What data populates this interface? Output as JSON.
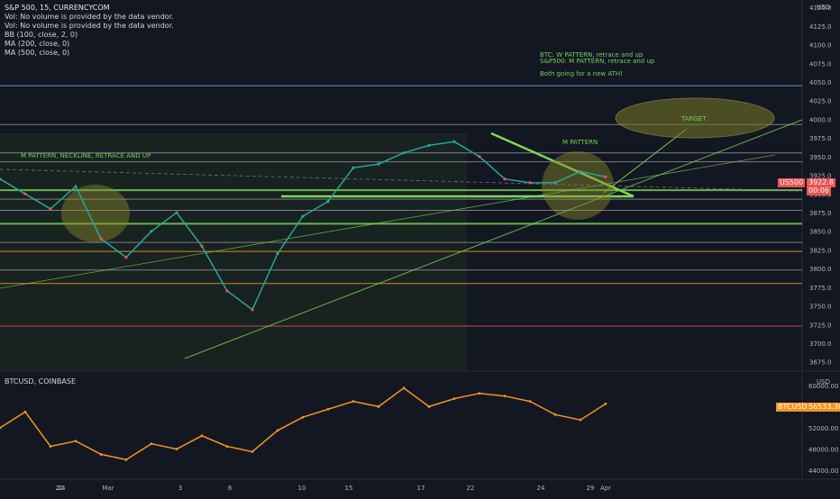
{
  "main_chart": {
    "header": {
      "symbol_line": "S&P 500, 15, CURRENCYCOM",
      "lines": [
        "Vol: No volume is provided by the data vendor.",
        "Vol: No volume is provided by the data vendor.",
        "BB (100, close, 2, 0)",
        "MA (200, close, 0)",
        "MA (500, close, 0)"
      ]
    },
    "currency": "USD",
    "price_label": {
      "symbol": "US500",
      "value": "3922.8",
      "countdown": "00:06"
    },
    "annotations": {
      "m_pattern_left": "M PATTERN, NECKLINE, RETRACE AND UP",
      "m_pattern_right": "M PATTERN",
      "target": "TARGET",
      "btc_note": "BTC: W PATTERN, retrace and up",
      "spx_note": "S&P500: M PATTERN, retrace and up",
      "ath_note": "Both going for a new ATH!"
    }
  },
  "sub_chart": {
    "header": "BTCUSD, COINBASE",
    "currency": "USD",
    "price_label": {
      "symbol": "BTCUSD",
      "value": "56533.30"
    }
  },
  "x_axis": {
    "ticks": [
      "22",
      "24",
      "Mar",
      "3",
      "8",
      "10",
      "15",
      "17",
      "22",
      "24",
      "29",
      "Apr"
    ]
  },
  "colors": {
    "background": "#131722",
    "spx_up": "#26a69a",
    "spx_down": "#ef5350",
    "btc_line": "#f7931a",
    "annotation_green": "#7ed957",
    "orange_level": "#ffa726",
    "red_level": "#ef5350"
  },
  "chart_data": [
    {
      "type": "line",
      "title": "S&P 500, 15, CURRENCYCOM",
      "ylim": [
        3665,
        4155
      ],
      "y_ticks": [
        4150,
        4125,
        4100,
        4075,
        4050,
        4025,
        4000,
        3975,
        3950,
        3925,
        3900,
        3875,
        3850,
        3825,
        3800,
        3775,
        3750,
        3725,
        3700,
        3675
      ],
      "x": [
        "22",
        "24",
        "Mar",
        "3",
        "8",
        "10",
        "15",
        "17",
        "22",
        "24",
        "29",
        "Apr"
      ],
      "series": [
        {
          "name": "US500",
          "points": [
            [
              "Feb 19",
              3920
            ],
            [
              "22",
              3900
            ],
            [
              "Feb 23",
              3880
            ],
            [
              "24",
              3910
            ],
            [
              "Feb 25",
              3840
            ],
            [
              "Feb 26",
              3815
            ],
            [
              "Mar",
              3850
            ],
            [
              "Mar 2",
              3875
            ],
            [
              "3",
              3830
            ],
            [
              "Mar 4",
              3770
            ],
            [
              "Mar 5",
              3745
            ],
            [
              "8",
              3820
            ],
            [
              "Mar 9",
              3870
            ],
            [
              "10",
              3890
            ],
            [
              "Mar 11",
              3935
            ],
            [
              "Mar 12",
              3940
            ],
            [
              "15",
              3955
            ],
            [
              "Mar 16",
              3965
            ],
            [
              "17",
              3970
            ],
            [
              "Mar 18",
              3950
            ],
            [
              "Mar 19",
              3920
            ],
            [
              "22",
              3915
            ],
            [
              "Mar 23",
              3915
            ],
            [
              "24",
              3930
            ],
            [
              "Mar 25",
              3922.8
            ]
          ]
        }
      ],
      "horizontal_levels": [
        3993,
        3955,
        3943,
        3905,
        3893,
        3878,
        3860,
        3835,
        3823,
        3798,
        3780,
        3723
      ],
      "current_value": 3922.8
    },
    {
      "type": "line",
      "title": "BTCUSD, COINBASE",
      "ylim": [
        43000,
        61000
      ],
      "y_ticks": [
        60000,
        56000,
        52000,
        48000,
        44000
      ],
      "series": [
        {
          "name": "BTCUSD",
          "points": [
            [
              "Feb 19",
              52000
            ],
            [
              "22",
              55000
            ],
            [
              "Feb 23",
              48500
            ],
            [
              "24",
              49500
            ],
            [
              "Feb 25",
              47000
            ],
            [
              "Feb 26",
              46000
            ],
            [
              "Mar",
              49000
            ],
            [
              "Mar 2",
              48000
            ],
            [
              "3",
              50500
            ],
            [
              "Mar 4",
              48500
            ],
            [
              "Mar 5",
              47500
            ],
            [
              "8",
              51500
            ],
            [
              "Mar 9",
              54000
            ],
            [
              "10",
              55500
            ],
            [
              "Mar 11",
              57000
            ],
            [
              "Mar 12",
              56000
            ],
            [
              "15",
              59500
            ],
            [
              "Mar 16",
              56000
            ],
            [
              "17",
              57500
            ],
            [
              "Mar 18",
              58500
            ],
            [
              "Mar 19",
              58000
            ],
            [
              "22",
              57000
            ],
            [
              "Mar 23",
              54500
            ],
            [
              "24",
              53500
            ],
            [
              "Mar 25",
              56533.3
            ]
          ]
        }
      ],
      "current_value": 56533.3
    }
  ]
}
